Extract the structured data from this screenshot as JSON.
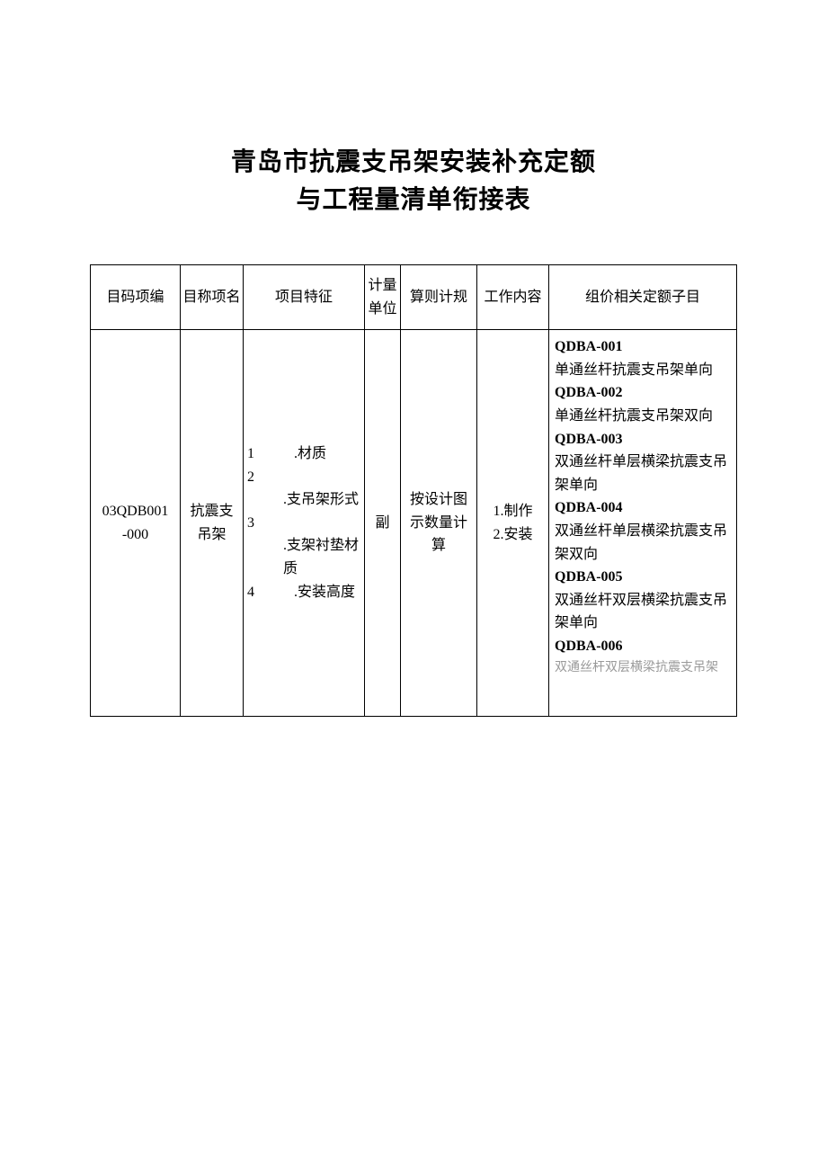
{
  "title": {
    "line1": "青岛市抗震支吊架安装补充定额",
    "line2": "与工程量清单衔接表"
  },
  "headers": {
    "code": "目码项编",
    "name": "目称项名",
    "feature": "项目特征",
    "unit": "计量单位",
    "rule": "算则计规",
    "work": "工作内容",
    "sub": "组价相关定额子目"
  },
  "row": {
    "code": "03QDB001\n-000",
    "name": "抗震支吊架",
    "features": [
      {
        "num": "1",
        "text": ".材质"
      },
      {
        "num": "2",
        "text": ".支吊架形式"
      },
      {
        "num": "3",
        "text": ".支架衬垫材质"
      },
      {
        "num": "4",
        "text": ".安装高度"
      }
    ],
    "unit": "副",
    "rule": "按设计图示数量计算",
    "work": "1.制作\n2.安装",
    "subitems": [
      {
        "code": "QDBA-001",
        "desc": "单通丝杆抗震支吊架单向"
      },
      {
        "code": "QDBA-002",
        "desc": "单通丝杆抗震支吊架双向"
      },
      {
        "code": "QDBA-003",
        "desc": "双通丝杆单层横梁抗震支吊架单向"
      },
      {
        "code": "QDBA-004",
        "desc": "双通丝杆单层横梁抗震支吊架双向"
      },
      {
        "code": "QDBA-005",
        "desc": "双通丝杆双层横梁抗震支吊架单向"
      },
      {
        "code": "QDBA-006",
        "desc": "双通丝杆双层横梁抗震支吊架"
      }
    ]
  },
  "colors": {
    "background": "#ffffff",
    "text": "#000000",
    "border": "#000000"
  }
}
